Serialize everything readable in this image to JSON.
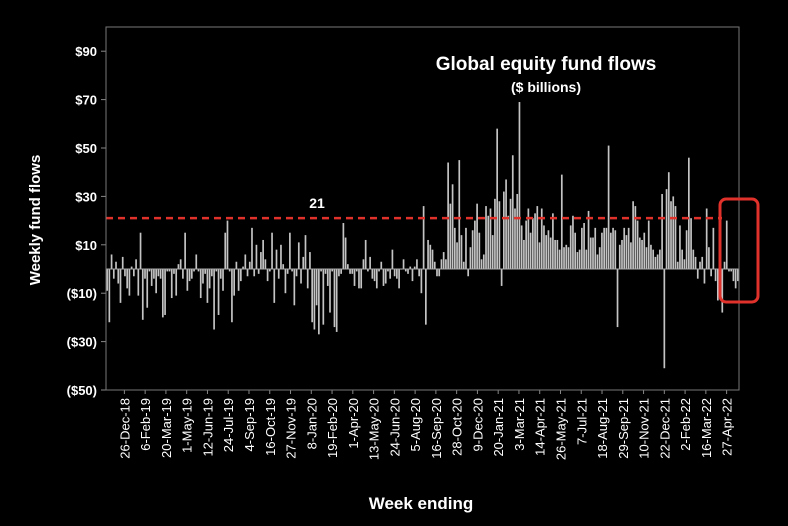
{
  "chart_data": {
    "type": "bar",
    "title": "Global equity fund flows",
    "subtitle": "($ billions)",
    "xlabel": "Week ending",
    "ylabel": "Weekly fund flows",
    "ylim": [
      -50,
      100
    ],
    "yticks": [
      {
        "value": 90,
        "label": "$90"
      },
      {
        "value": 70,
        "label": "$70"
      },
      {
        "value": 50,
        "label": "$50"
      },
      {
        "value": 30,
        "label": "$30"
      },
      {
        "value": 10,
        "label": "$10"
      },
      {
        "value": -10,
        "label": "($10)"
      },
      {
        "value": -30,
        "label": "($30)"
      },
      {
        "value": -50,
        "label": "($50)"
      }
    ],
    "x_tick_labels": [
      "26-Dec-18",
      "6-Feb-19",
      "20-Mar-19",
      "1-May-19",
      "12-Jun-19",
      "24-Jul-19",
      "4-Sep-19",
      "16-Oct-19",
      "27-Nov-19",
      "8-Jan-20",
      "19-Feb-20",
      "1-Apr-20",
      "13-May-20",
      "24-Jun-20",
      "5-Aug-20",
      "16-Sep-20",
      "28-Oct-20",
      "9-Dec-20",
      "20-Jan-21",
      "3-Mar-21",
      "14-Apr-21",
      "26-May-21",
      "7-Jul-21",
      "18-Aug-21",
      "29-Sep-21",
      "10-Nov-21",
      "22-Dec-21",
      "2-Feb-22",
      "16-Mar-22",
      "27-Apr-22"
    ],
    "reference_line": {
      "value": 21,
      "label": "21",
      "color": "#e0312a",
      "style": "dashed"
    },
    "highlight_box_color": "#e0312a",
    "bar_color": "#c4c4c4",
    "values": [
      -9,
      -22,
      6,
      -4,
      3,
      -6,
      -14,
      5,
      -3,
      -8,
      -11,
      1,
      -3,
      4,
      -11,
      15,
      -21,
      -4,
      -16,
      -1,
      -7,
      -4,
      -10,
      -3,
      -4,
      -20,
      -19,
      -1,
      -1,
      -12,
      -2,
      -11,
      2,
      4,
      -4,
      15,
      -9,
      -5,
      -4,
      -1,
      6,
      -1,
      -12,
      -6,
      -2,
      -14,
      -8,
      -3,
      -25,
      -1,
      -19,
      -4,
      -9,
      15,
      20,
      -1,
      -22,
      -11,
      3,
      -9,
      -5,
      1,
      6,
      -3,
      3,
      17,
      -3,
      10,
      -2,
      7,
      12,
      4,
      -5,
      -1,
      15,
      -14,
      8,
      -4,
      10,
      2,
      -10,
      -2,
      15,
      -1,
      -15,
      -3,
      11,
      -6,
      5,
      14,
      -8,
      7,
      -22,
      -25,
      -15,
      -27,
      -1,
      -23,
      -2,
      -7,
      -18,
      -1,
      -24,
      -26,
      -3,
      -2,
      19,
      13,
      2,
      -2,
      -2,
      -7,
      -1,
      -8,
      -8,
      4,
      12,
      -1,
      5,
      -4,
      -5,
      -8,
      -1,
      3,
      -7,
      -6,
      -1,
      -4,
      8,
      -3,
      -4,
      -8,
      0,
      4,
      -1,
      -2,
      1,
      -5,
      1,
      4,
      -3,
      -10,
      26,
      -23,
      12,
      10,
      8,
      3,
      -3,
      -3,
      4,
      7,
      4,
      44,
      27,
      35,
      17,
      11,
      45,
      14,
      3,
      17,
      -3,
      9,
      16,
      20,
      27,
      15,
      4,
      6,
      26,
      22,
      25,
      14,
      29,
      58,
      28,
      -7,
      32,
      37,
      22,
      29,
      47,
      25,
      31,
      69,
      18,
      12,
      20,
      25,
      15,
      21,
      23,
      26,
      11,
      25,
      18,
      14,
      16,
      13,
      23,
      12,
      12,
      8,
      39,
      9,
      10,
      9,
      18,
      22,
      15,
      7,
      8,
      17,
      19,
      8,
      24,
      13,
      13,
      17,
      6,
      9,
      15,
      17,
      17,
      51,
      15,
      17,
      16,
      -24,
      10,
      12,
      17,
      14,
      17,
      11,
      28,
      26,
      20,
      13,
      12,
      15,
      9,
      20,
      10,
      8,
      5,
      6,
      8,
      31,
      -41,
      33,
      40,
      28,
      30,
      26,
      3,
      18,
      8,
      4,
      16,
      46,
      21,
      8,
      5,
      -4,
      3,
      5,
      -6,
      25,
      9,
      -3,
      17,
      -5,
      -13,
      11,
      -18,
      3,
      20,
      -1,
      -1,
      -5,
      -8,
      -5
    ]
  }
}
